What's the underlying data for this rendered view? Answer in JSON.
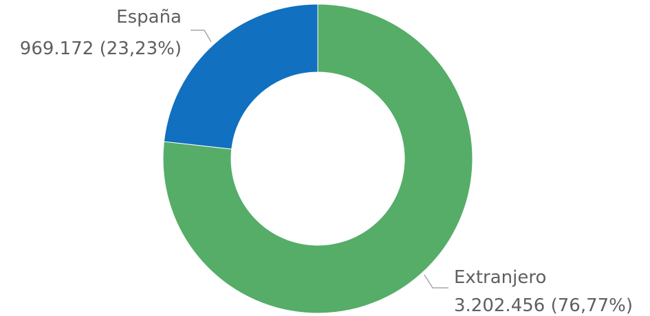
{
  "chart_data": {
    "type": "pie",
    "variant": "donut",
    "title": "",
    "categories": [
      "España",
      "Extranjero"
    ],
    "values": [
      969172,
      3202456
    ],
    "percentages": [
      23.23,
      76.77
    ],
    "value_labels": [
      "969.172 (23,23%)",
      "3.202.456 (76,77%)"
    ],
    "colors": [
      "#1170bf",
      "#55ad68"
    ],
    "legend": "none"
  }
}
